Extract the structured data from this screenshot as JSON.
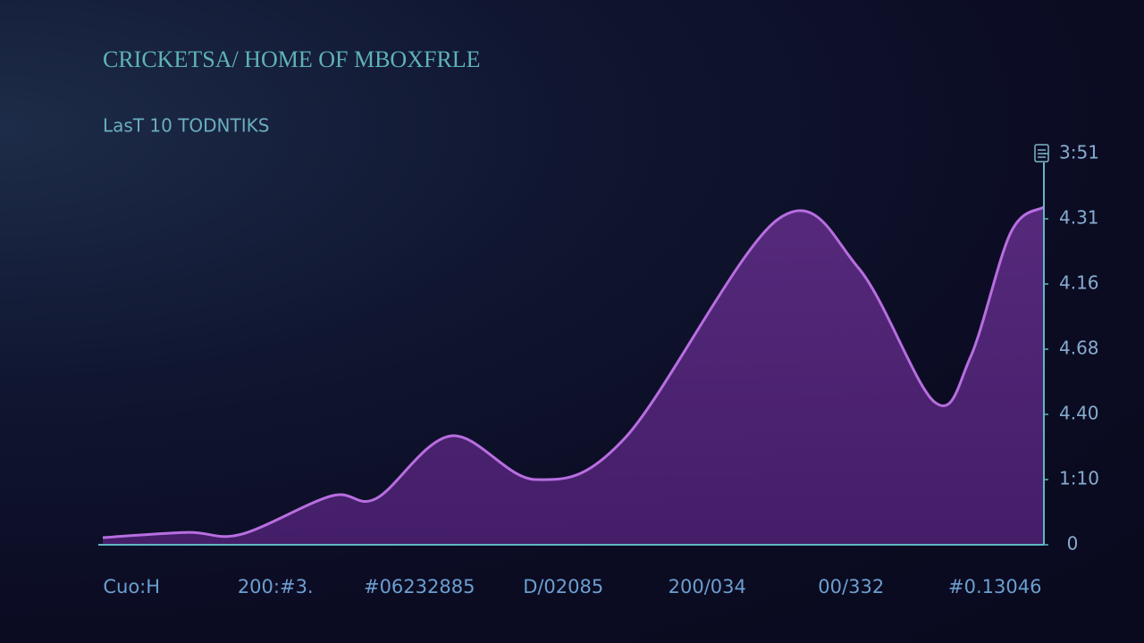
{
  "chart_data": {
    "type": "area",
    "title": "CRICKETSA/ HOME OF MBOXFRLE",
    "subtitle": "LasT 10 TODNTIKS",
    "x": [
      -0.2,
      0.39,
      0.76,
      1.39,
      1.7,
      2.22,
      2.81,
      3.43,
      4.49,
      5.05,
      5.58,
      5.83,
      6.11,
      6.34
    ],
    "values": [
      0.11,
      0.19,
      0.16,
      0.75,
      0.71,
      1.67,
      1.0,
      1.64,
      4.99,
      4.25,
      2.19,
      2.88,
      4.79,
      5.18
    ],
    "color": "#b86ee0",
    "xlim": [
      -0.2,
      6.34
    ],
    "xticks": [
      {
        "value": 0,
        "label": "Cuo:H"
      },
      {
        "value": 1,
        "label": "200:#3."
      },
      {
        "value": 2,
        "label": "#06232885"
      },
      {
        "value": 3,
        "label": "D/02085"
      },
      {
        "value": 4,
        "label": "200/034"
      },
      {
        "value": 5,
        "label": "00/332"
      },
      {
        "value": 6,
        "label": "#0.13046"
      }
    ],
    "ylim": [
      0,
      6
    ],
    "yticks": [
      0,
      {
        "value": 1,
        "label": "1:10"
      },
      {
        "value": 2,
        "label": "4.40"
      },
      {
        "value": 3,
        "label": "4.68"
      },
      {
        "value": 4,
        "label": "4.16"
      },
      {
        "value": 5,
        "label": "4.31"
      },
      {
        "value": 6,
        "label": "3:51"
      }
    ]
  }
}
